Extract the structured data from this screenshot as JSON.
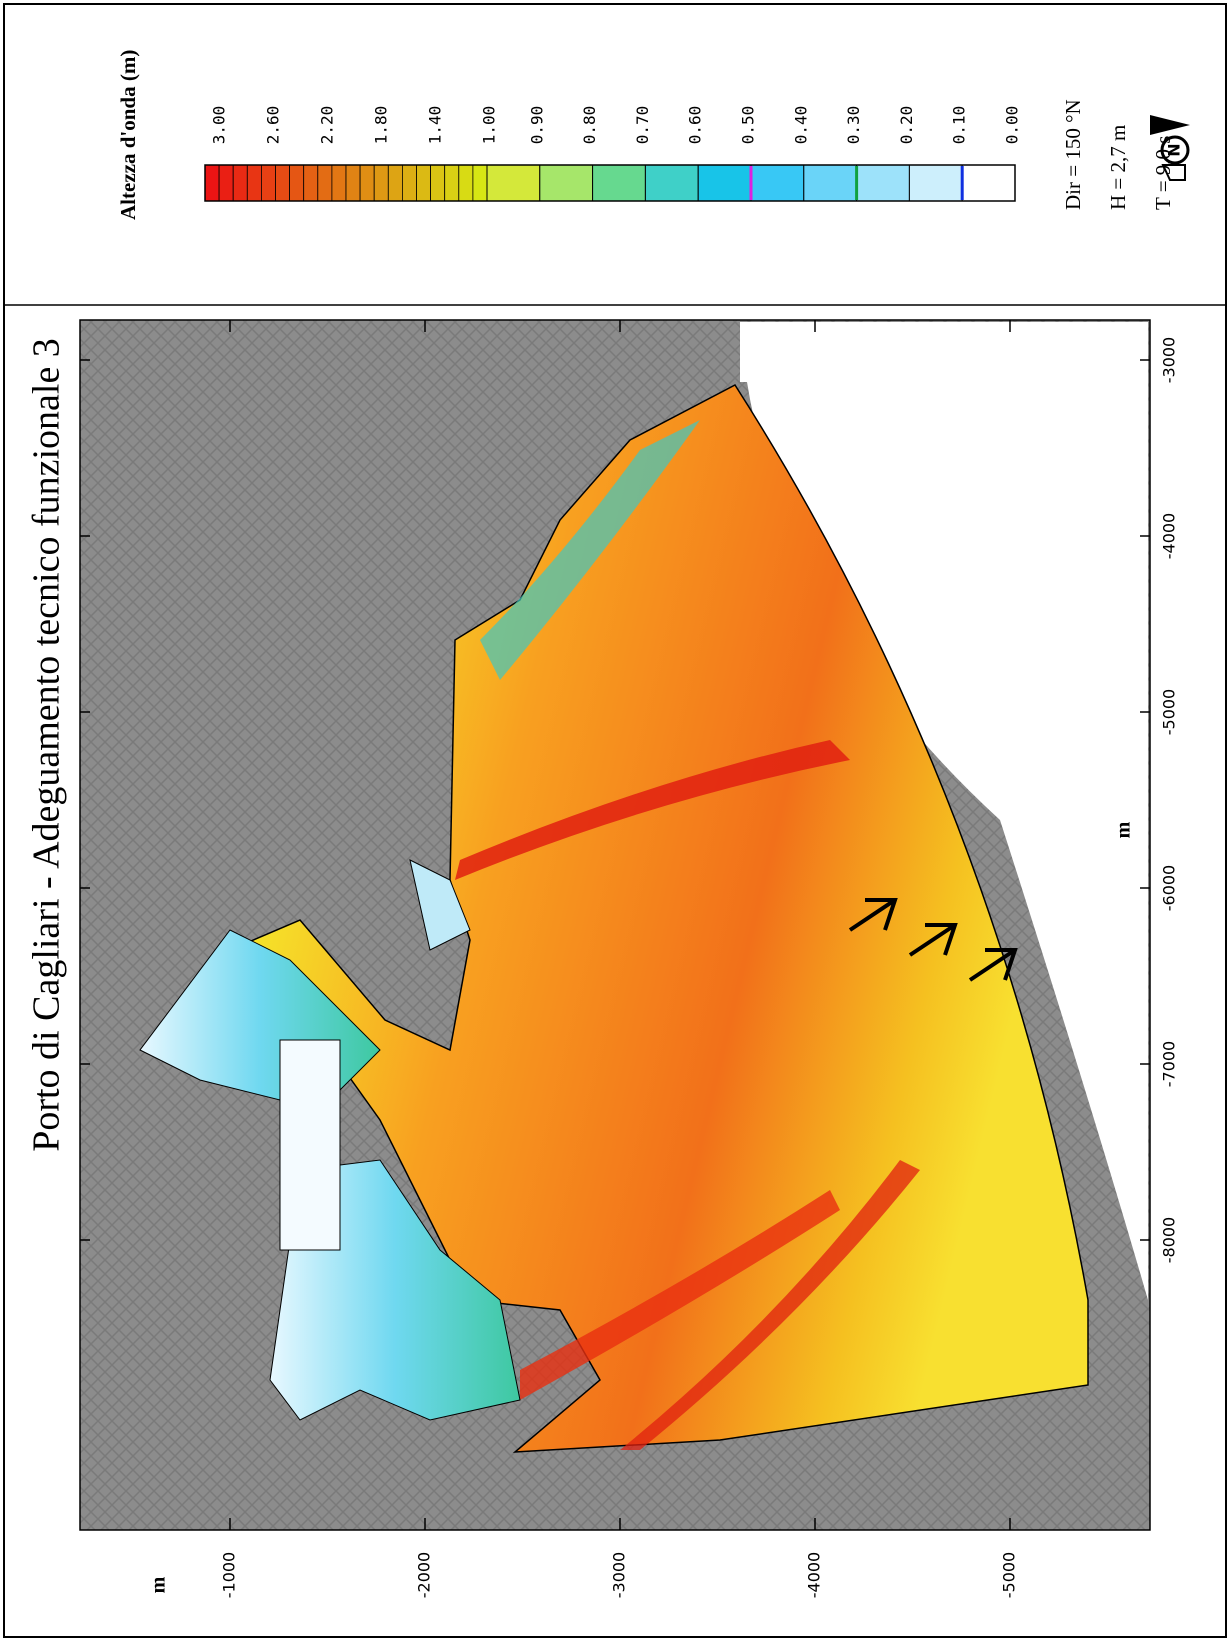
{
  "header": {
    "title": "Porto di Cagliari - Adeguamento tecnico funzionale 3"
  },
  "legend": {
    "title": "Altezza d'onda (m)",
    "levels": [
      "3.00",
      "2.60",
      "2.20",
      "1.80",
      "1.40",
      "1.00",
      "0.90",
      "0.80",
      "0.70",
      "0.60",
      "0.50",
      "0.40",
      "0.30",
      "0.20",
      "0.10",
      "0.00"
    ]
  },
  "parameters": [
    "Dir = 150 °N",
    "H = 2,7 m",
    "T = 9,0 s"
  ],
  "north_label": "N",
  "map": {
    "x_axis": {
      "label": "m",
      "ticks": [
        -3000,
        -4000,
        -5000,
        -6000,
        -7000,
        -8000
      ]
    },
    "y_axis": {
      "label": "m",
      "ticks": [
        -1000,
        -2000,
        -3000,
        -4000,
        -5000
      ]
    }
  }
}
